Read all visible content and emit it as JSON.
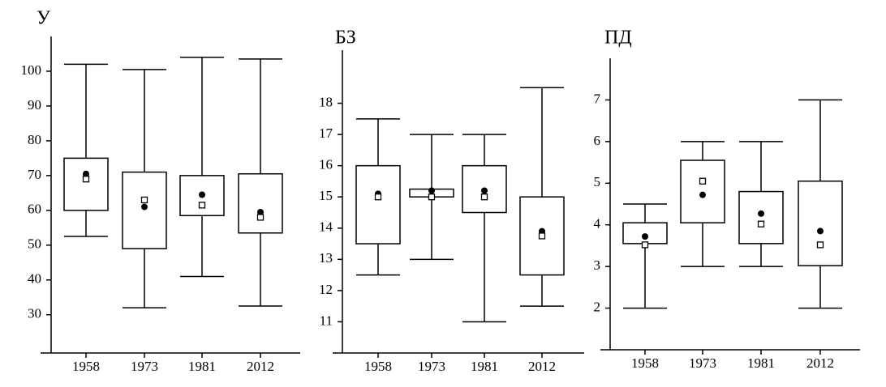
{
  "chart_data": [
    {
      "type": "box",
      "title": "У",
      "categories": [
        "1958",
        "1973",
        "1981",
        "2012"
      ],
      "min": [
        52.5,
        32,
        41,
        32.5
      ],
      "q1": [
        60,
        49,
        58.5,
        53.5
      ],
      "q3": [
        75,
        71,
        70,
        70.5
      ],
      "max": [
        102,
        100.5,
        104,
        103.5
      ],
      "mean": [
        70.5,
        61,
        64.5,
        59.5
      ],
      "median": [
        69,
        63,
        61.5,
        58
      ],
      "ylim": [
        19,
        110
      ],
      "yticks": [
        30,
        40,
        50,
        60,
        70,
        80,
        90,
        100
      ]
    },
    {
      "type": "box",
      "title": "БЗ",
      "categories": [
        "1958",
        "1973",
        "1981",
        "2012"
      ],
      "min": [
        12.5,
        13,
        11,
        11.5
      ],
      "q1": [
        13.5,
        15,
        14.5,
        12.5
      ],
      "q3": [
        16,
        15.25,
        16,
        15
      ],
      "max": [
        17.5,
        17,
        17,
        18.5
      ],
      "mean": [
        15.1,
        15.2,
        15.2,
        13.9
      ],
      "median": [
        15,
        15,
        15,
        13.75
      ],
      "ylim": [
        10,
        19.7
      ],
      "yticks": [
        11,
        12,
        13,
        14,
        15,
        16,
        17,
        18
      ]
    },
    {
      "type": "box",
      "title": "ПД",
      "categories": [
        "1958",
        "1973",
        "1981",
        "2012"
      ],
      "min": [
        2,
        3,
        3,
        2
      ],
      "q1": [
        3.55,
        4.05,
        3.55,
        3.02
      ],
      "q3": [
        4.05,
        5.55,
        4.8,
        5.05
      ],
      "max": [
        4.5,
        6,
        6,
        7
      ],
      "mean": [
        3.72,
        4.72,
        4.27,
        3.85
      ],
      "median": [
        3.52,
        5.05,
        4.02,
        3.52
      ],
      "ylim": [
        1,
        8
      ],
      "yticks": [
        2,
        3,
        4,
        5,
        6,
        7
      ]
    }
  ]
}
